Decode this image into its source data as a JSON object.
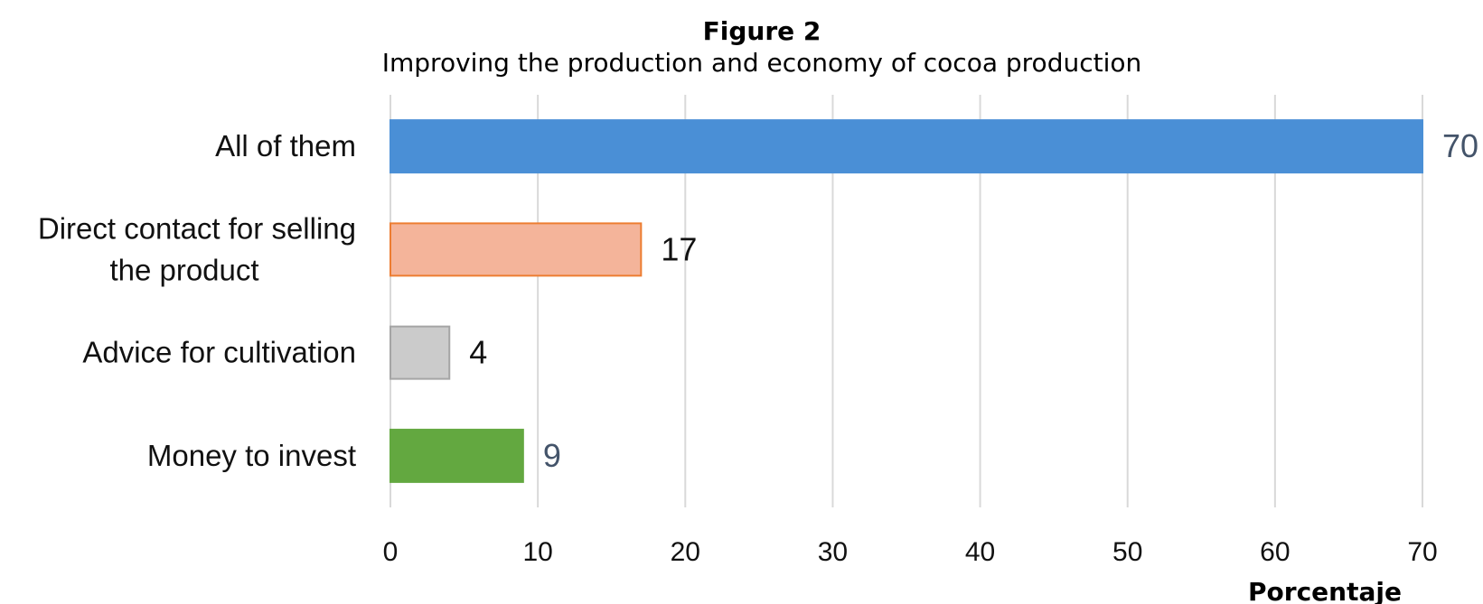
{
  "figure": {
    "title": "Figure 2",
    "subtitle": "Improving the production and economy of cocoa production"
  },
  "chart_data": {
    "type": "bar",
    "orientation": "horizontal",
    "categories": [
      [
        "All of them"
      ],
      [
        "Direct contact for selling",
        "the product"
      ],
      [
        "Advice for cultivation"
      ],
      [
        "Money to invest"
      ]
    ],
    "values": [
      70,
      17,
      4,
      9
    ],
    "data_labels": [
      "70",
      "17",
      "4",
      "9"
    ],
    "bar_colors": [
      "#4a8fd6",
      "#f4b49a",
      "#cbcbcb",
      "#63a840"
    ],
    "bar_edge_colors": [
      "#4a8fd6",
      "#ed7d31",
      "#a5a5a5",
      "#63a840"
    ],
    "label_colors": [
      "#44546a",
      "#111111",
      "#111111",
      "#44546a"
    ],
    "xlabel": "Porcentaje",
    "ylabel": "",
    "xlim": [
      0,
      70
    ],
    "xticks": [
      0,
      10,
      20,
      30,
      40,
      50,
      60,
      70
    ],
    "grid": "vertical",
    "legend": "none"
  }
}
